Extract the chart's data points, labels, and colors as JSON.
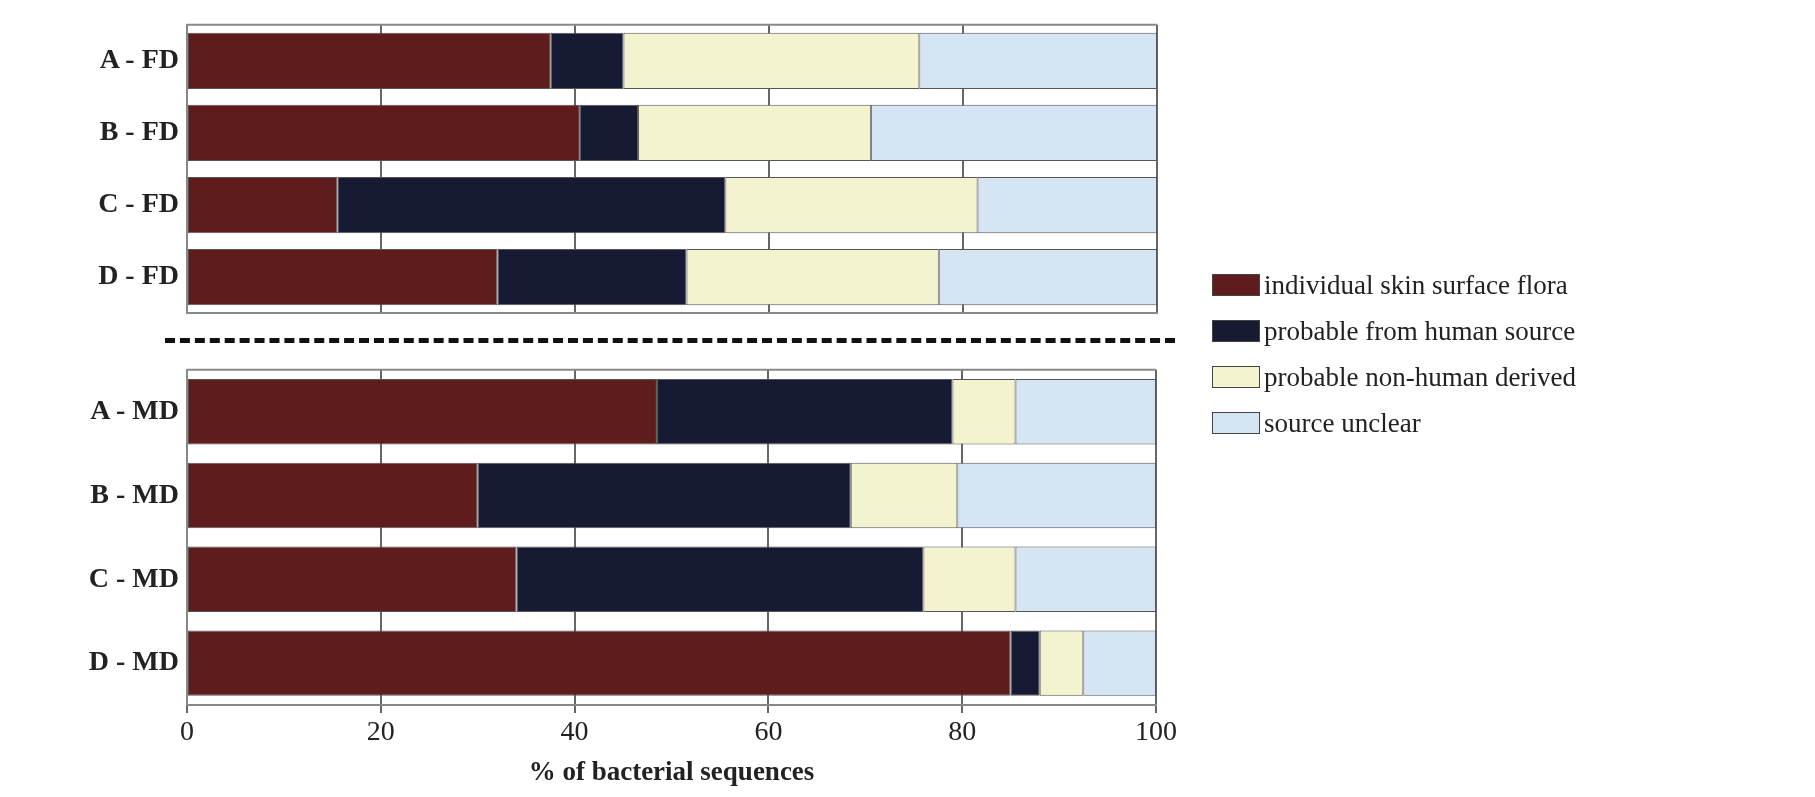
{
  "chart_data": [
    {
      "type": "bar",
      "orientation": "horizontal",
      "stacked": true,
      "categories": [
        "A - FD",
        "B - FD",
        "C - FD",
        "D - FD"
      ],
      "xlim": [
        0,
        100
      ],
      "xticks": [
        0,
        20,
        40,
        60,
        80,
        100
      ],
      "grid": "x",
      "tick_labels": "y",
      "series": [
        {
          "color": "#5e1c1c",
          "values": [
            37.5,
            40.5,
            15.5,
            32
          ]
        },
        {
          "color": "#161a33",
          "values": [
            7.5,
            6,
            40,
            19.5
          ]
        },
        {
          "color": "#f3f3cf",
          "values": [
            30.5,
            24,
            26,
            26
          ]
        },
        {
          "color": "#d5e5f3",
          "values": [
            24.5,
            29.5,
            18.5,
            22.5
          ]
        }
      ]
    },
    {
      "type": "bar",
      "orientation": "horizontal",
      "stacked": true,
      "categories": [
        "A - MD",
        "B - MD",
        "C - MD",
        "D - MD"
      ],
      "xlim": [
        0,
        100
      ],
      "xticks": [
        0,
        20,
        40,
        60,
        80,
        100
      ],
      "grid": "x",
      "xlabel": "% of bacterial sequences",
      "legend": "right",
      "series": [
        {
          "name": "individual skin surface flora",
          "color": "#5e1c1c",
          "values": [
            48.5,
            30,
            34,
            85
          ]
        },
        {
          "name": "probable from human source",
          "color": "#161a33",
          "values": [
            30.5,
            38.5,
            42,
            3
          ]
        },
        {
          "name": "probable non-human derived",
          "color": "#f3f3cf",
          "values": [
            6.5,
            11,
            9.5,
            4.5
          ]
        },
        {
          "name": "source unclear",
          "color": "#d5e5f3",
          "values": [
            14.5,
            20.5,
            14.5,
            7.5
          ]
        }
      ]
    }
  ]
}
